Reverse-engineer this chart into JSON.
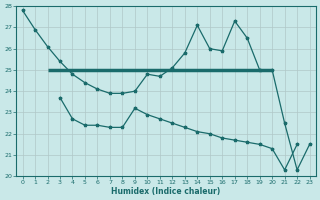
{
  "xlabel": "Humidex (Indice chaleur)",
  "background_color": "#c9e8e8",
  "grid_color": "#b0c8c8",
  "line_color": "#1a6b6b",
  "x_main": [
    0,
    1,
    2,
    3,
    4,
    5,
    6,
    7,
    8,
    9,
    10,
    11,
    12,
    13,
    14,
    15,
    16,
    17,
    18,
    19,
    20,
    21,
    22,
    23
  ],
  "y_main": [
    27.8,
    26.9,
    26.1,
    25.4,
    24.8,
    24.4,
    24.1,
    23.9,
    23.9,
    24.0,
    24.8,
    24.7,
    25.1,
    25.8,
    27.1,
    26.0,
    25.9,
    27.3,
    26.5,
    25.0,
    25.0,
    22.5,
    20.3,
    21.5
  ],
  "x_low": [
    3,
    4,
    5,
    6,
    7,
    8,
    9,
    10,
    11,
    12,
    13,
    14,
    15,
    16,
    17,
    18,
    19,
    20,
    21,
    22
  ],
  "y_low": [
    23.7,
    22.7,
    22.4,
    22.4,
    22.3,
    22.3,
    23.2,
    22.9,
    22.7,
    22.5,
    22.3,
    22.1,
    22.0,
    21.8,
    21.7,
    21.6,
    21.5,
    21.3,
    20.3,
    21.5
  ],
  "hline_y": 25.0,
  "hline_x_start": 2,
  "hline_x_end": 20,
  "ylim": [
    20,
    28
  ],
  "xlim_min": -0.5,
  "xlim_max": 23.5
}
